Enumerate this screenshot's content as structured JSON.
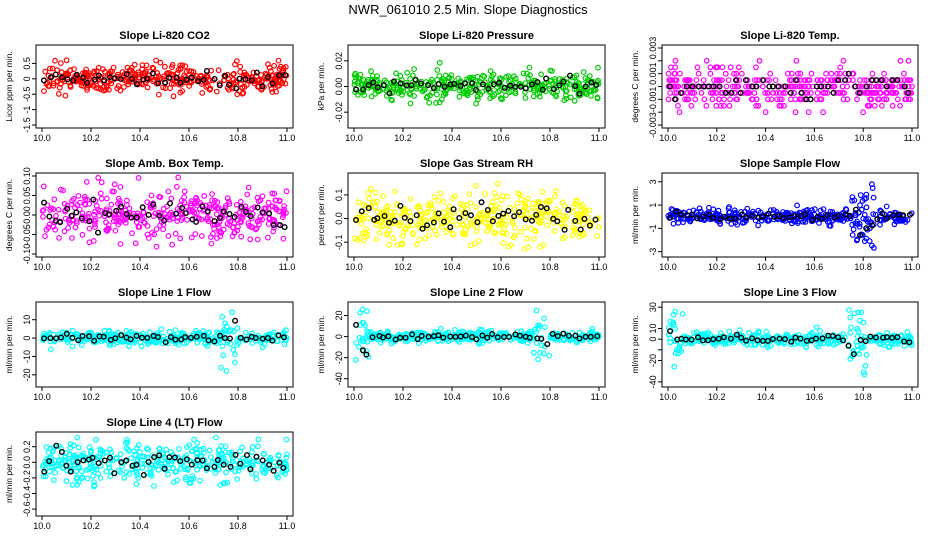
{
  "figure_title": "NWR_061010  2.5 Min. Slope Diagnostics",
  "colors": {
    "red": "#ff0000",
    "green": "#00cc00",
    "magenta": "#ff00ff",
    "yellow": "#ffff00",
    "blue": "#0000ff",
    "cyan": "#00ffff",
    "black": "#000000"
  },
  "chart_data": [
    {
      "type": "scatter",
      "title": "Slope Li-820 CO2",
      "ylabel": "Licor ppm per min.",
      "color": "#ff0000",
      "x": [
        10.0,
        10.2,
        10.4,
        10.6,
        10.8,
        11.0
      ],
      "xticks": [
        "10.0",
        "10.2",
        "10.4",
        "10.6",
        "10.8",
        "11.0"
      ],
      "xlim": [
        10.0,
        11.0
      ],
      "ylim": [
        -1.5,
        1.0
      ],
      "yticks": [
        -1.5,
        -1,
        -0.5,
        0,
        0.5
      ],
      "ytick_labels": [
        "-1.5",
        "-1",
        "-0.5",
        "0",
        "0.5"
      ],
      "noise": {
        "sd": 0.22,
        "spread_min": -1.35,
        "spread_max": 0.75,
        "n": 380
      },
      "black_n": 45
    },
    {
      "type": "scatter",
      "title": "Slope Li-820 Pressure",
      "ylabel": "kPa per min.",
      "color": "#00cc00",
      "xlim": [
        10.0,
        11.0
      ],
      "ylim": [
        -0.03,
        0.03
      ],
      "yticks": [
        -0.02,
        0,
        0.02
      ],
      "ytick_labels": [
        "-0.02",
        "0.00",
        "0.02"
      ],
      "xticks": [
        "10.0",
        "10.2",
        "10.4",
        "10.6",
        "10.8",
        "11.0"
      ],
      "noise": {
        "sd": 0.005,
        "spread_min": -0.028,
        "spread_max": 0.028,
        "n": 380
      },
      "black_n": 45
    },
    {
      "type": "scatter",
      "title": "Slope Li-820 Temp.",
      "ylabel": "degrees C per min.",
      "color": "#ff00ff",
      "xlim": [
        10.0,
        11.0
      ],
      "ylim": [
        -0.003,
        0.003
      ],
      "yticks": [
        -0.003,
        -0.002,
        -0.001,
        0,
        0.001,
        0.002,
        0.003
      ],
      "ytick_labels": [
        "-0.003",
        "",
        "-0.001",
        "",
        "0.001",
        "",
        "0.003"
      ],
      "xticks": [
        "10.0",
        "10.2",
        "10.4",
        "10.6",
        "10.8",
        "11.0"
      ],
      "noise": {
        "sd": 0.0008,
        "spread_min": -0.0028,
        "spread_max": 0.0024,
        "n": 380,
        "quantize": 0.0005
      },
      "black_n": 45
    },
    {
      "type": "scatter",
      "title": "Slope Amb. Box Temp.",
      "ylabel": "degrees C per min.",
      "color": "#ff00ff",
      "xlim": [
        10.0,
        11.0
      ],
      "ylim": [
        -0.1,
        0.1
      ],
      "yticks": [
        -0.1,
        -0.05,
        0,
        0.05,
        0.1
      ],
      "ytick_labels": [
        "-0.10",
        "-0.05",
        "0.00",
        "0.05",
        "0.10"
      ],
      "xticks": [
        "10.0",
        "10.2",
        "10.4",
        "10.6",
        "10.8",
        "11.0"
      ],
      "noise": {
        "sd": 0.035,
        "spread_min": -0.1,
        "spread_max": 0.1,
        "n": 380
      },
      "black_n": 45
    },
    {
      "type": "scatter",
      "title": "Slope Gas Stream RH",
      "ylabel": "percent per min.",
      "color": "#ffff00",
      "xlim": [
        10.0,
        11.0
      ],
      "ylim": [
        -0.15,
        0.18
      ],
      "yticks": [
        -0.1,
        0,
        0.1
      ],
      "ytick_labels": [
        "-0.1",
        "0.0",
        "0.1"
      ],
      "xticks": [
        "10.0",
        "10.2",
        "10.4",
        "10.6",
        "10.8",
        "11.0"
      ],
      "noise": {
        "sd": 0.05,
        "spread_min": -0.14,
        "spread_max": 0.16,
        "n": 380
      },
      "black_n": 45
    },
    {
      "type": "scatter",
      "title": "Slope Sample Flow",
      "ylabel": "ml/min per min.",
      "color": "#0000ff",
      "xlim": [
        10.0,
        11.0
      ],
      "ylim": [
        -3.2,
        3.5
      ],
      "yticks": [
        -3,
        -1,
        1,
        3
      ],
      "ytick_labels": [
        "-3",
        "-1",
        "1",
        "3"
      ],
      "xticks": [
        "10.0",
        "10.2",
        "10.4",
        "10.6",
        "10.8",
        "11.0"
      ],
      "noise": {
        "sd": 0.3,
        "spread_min": -3.0,
        "spread_max": 3.2,
        "n": 380,
        "burst": [
          10.75,
          10.85,
          1.4
        ]
      },
      "black_n": 45
    },
    {
      "type": "scatter",
      "title": "Slope Line 1 Flow",
      "ylabel": "ml/min per min.",
      "color": "#00ffff",
      "xlim": [
        10.0,
        11.0
      ],
      "ylim": [
        -25,
        18
      ],
      "yticks": [
        -20,
        -10,
        0,
        10
      ],
      "ytick_labels": [
        "-20",
        "-10",
        "0",
        "10"
      ],
      "xticks": [
        "10.0",
        "10.2",
        "10.4",
        "10.6",
        "10.8",
        "11.0"
      ],
      "noise": {
        "sd": 1.8,
        "spread_min": -24,
        "spread_max": 17,
        "n": 380,
        "burst": [
          10.73,
          10.8,
          9
        ]
      },
      "black_n": 45
    },
    {
      "type": "scatter",
      "title": "Slope Line 2 Flow",
      "ylabel": "ml/min per min.",
      "color": "#00ffff",
      "xlim": [
        10.0,
        11.0
      ],
      "ylim": [
        -45,
        30
      ],
      "yticks": [
        -40,
        -20,
        0,
        20
      ],
      "ytick_labels": [
        "-40",
        "-20",
        "0",
        "20"
      ],
      "xticks": [
        "10.0",
        "10.2",
        "10.4",
        "10.6",
        "10.8",
        "11.0"
      ],
      "noise": {
        "sd": 2.5,
        "spread_min": -43,
        "spread_max": 28,
        "n": 380,
        "burst": [
          10.73,
          10.8,
          12
        ],
        "burst2": [
          10.0,
          10.06,
          14
        ]
      },
      "black_n": 45
    },
    {
      "type": "scatter",
      "title": "Slope Line 3 Flow",
      "ylabel": "ml/min per min.",
      "color": "#00ffff",
      "xlim": [
        10.0,
        11.0
      ],
      "ylim": [
        -42,
        32
      ],
      "yticks": [
        -40,
        -20,
        -10,
        0,
        10,
        30
      ],
      "ytick_labels": [
        "-40",
        "-20",
        "",
        "0",
        "10",
        "30"
      ],
      "xticks": [
        "10.0",
        "10.2",
        "10.4",
        "10.6",
        "10.8",
        "11.0"
      ],
      "noise": {
        "sd": 3.0,
        "spread_min": -40,
        "spread_max": 30,
        "n": 380,
        "burst": [
          10.73,
          10.82,
          14
        ],
        "burst2": [
          10.0,
          10.06,
          14
        ]
      },
      "black_n": 45
    },
    {
      "type": "scatter",
      "title": "Slope Line 4 (LT) Flow",
      "ylabel": "ml/min per min.",
      "color": "#00ffff",
      "xlim": [
        10.0,
        11.0
      ],
      "ylim": [
        -0.65,
        0.35
      ],
      "yticks": [
        -0.6,
        -0.4,
        -0.2,
        0,
        0.2
      ],
      "ytick_labels": [
        "-0.6",
        "-0.4",
        "-0.2",
        "0.0",
        "0.2"
      ],
      "xticks": [
        "10.0",
        "10.2",
        "10.4",
        "10.6",
        "10.8",
        "11.0"
      ],
      "noise": {
        "sd": 0.13,
        "spread_min": -0.62,
        "spread_max": 0.32,
        "n": 380
      },
      "black_n": 45
    }
  ]
}
